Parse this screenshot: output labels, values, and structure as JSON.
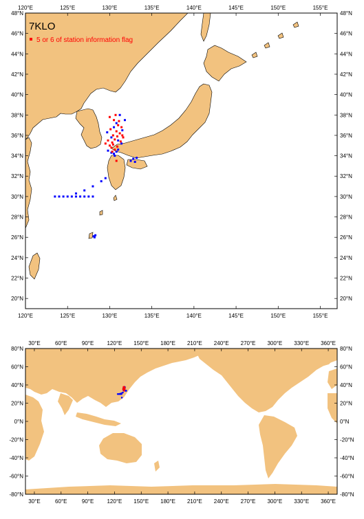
{
  "ship_code": "7KLO",
  "legend_label": "5 or 6 of station information flag",
  "colors": {
    "land": "#f2c27f",
    "blue": "#0000ff",
    "red": "#ff0000"
  },
  "regional_map": {
    "lon_ticks": [
      "120°E",
      "125°E",
      "130°E",
      "135°E",
      "140°E",
      "145°E",
      "150°E",
      "155°E"
    ],
    "lat_ticks": [
      "20°N",
      "22°N",
      "24°N",
      "26°N",
      "28°N",
      "30°N",
      "32°N",
      "34°N",
      "36°N",
      "38°N",
      "40°N",
      "42°N",
      "44°N",
      "46°N",
      "48°N"
    ],
    "lon_range": [
      120,
      157
    ],
    "lat_range": [
      19,
      48
    ]
  },
  "world_map": {
    "lon_ticks": [
      "30°E",
      "60°E",
      "90°E",
      "120°E",
      "150°E",
      "180°E",
      "210°E",
      "240°E",
      "270°E",
      "300°E",
      "330°E",
      "360°E"
    ],
    "lat_ticks": [
      "-80°N",
      "-60°N",
      "-40°N",
      "-20°N",
      "0°N",
      "20°N",
      "40°N",
      "60°N",
      "80°N"
    ],
    "lon_range": [
      20,
      370
    ],
    "lat_range": [
      -80,
      80
    ]
  },
  "chart_data": {
    "type": "scatter",
    "series": [
      {
        "color": "blue",
        "points": [
          [
            123.5,
            30
          ],
          [
            124,
            30
          ],
          [
            124.5,
            30
          ],
          [
            125,
            30
          ],
          [
            125.5,
            30
          ],
          [
            126,
            30
          ],
          [
            126.5,
            30
          ],
          [
            127,
            30
          ],
          [
            127.5,
            30
          ],
          [
            128,
            30
          ],
          [
            126,
            30.3
          ],
          [
            127,
            30.6
          ],
          [
            128,
            31
          ],
          [
            129,
            31.5
          ],
          [
            129.5,
            31.8
          ],
          [
            130.5,
            34.2
          ],
          [
            130.8,
            34.4
          ],
          [
            131,
            34.6
          ],
          [
            130.6,
            34.0
          ],
          [
            130.2,
            34.3
          ],
          [
            129.8,
            34.5
          ],
          [
            132.5,
            33.5
          ],
          [
            132.8,
            33.7
          ],
          [
            133,
            33.4
          ],
          [
            133.2,
            33.8
          ],
          [
            131.5,
            36.5
          ],
          [
            131.8,
            37.5
          ],
          [
            131.2,
            38
          ],
          [
            130.8,
            37.2
          ],
          [
            130.5,
            36.8
          ],
          [
            131,
            35.5
          ],
          [
            131.4,
            35.2
          ],
          [
            130.2,
            35.8
          ],
          [
            129.7,
            36.3
          ],
          [
            128.2,
            26
          ],
          [
            128.3,
            26.2
          ],
          [
            128.1,
            26.1
          ]
        ]
      },
      {
        "color": "red",
        "points": [
          [
            130,
            35
          ],
          [
            130.3,
            35.3
          ],
          [
            130.6,
            35.6
          ],
          [
            130.9,
            35.9
          ],
          [
            131.2,
            36.2
          ],
          [
            130.4,
            36
          ],
          [
            130.8,
            36.4
          ],
          [
            131,
            37
          ],
          [
            130.5,
            37.5
          ],
          [
            130.7,
            38
          ],
          [
            130.2,
            34.8
          ],
          [
            129.8,
            35.5
          ],
          [
            131.3,
            35.4
          ],
          [
            131.5,
            36
          ],
          [
            130.6,
            34.6
          ],
          [
            130.1,
            36.6
          ],
          [
            131.1,
            37.4
          ],
          [
            130.4,
            35.1
          ],
          [
            130.9,
            34.9
          ],
          [
            131.4,
            36.8
          ],
          [
            130,
            37.8
          ],
          [
            130.3,
            34.4
          ],
          [
            129.5,
            35.2
          ],
          [
            131.6,
            35.8
          ],
          [
            130.8,
            33.5
          ]
        ]
      }
    ]
  }
}
